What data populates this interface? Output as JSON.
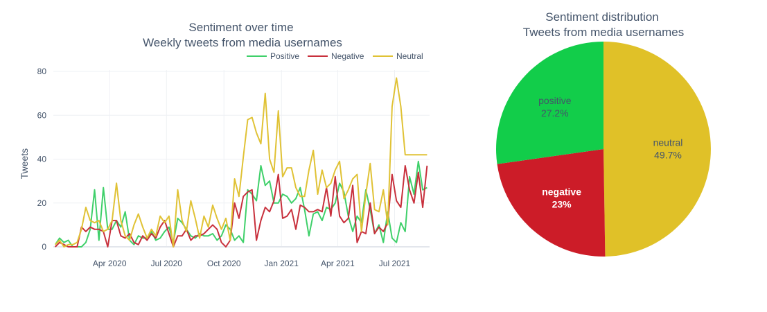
{
  "chart_data": [
    {
      "type": "line",
      "title": "Sentiment over time",
      "subtitle": "Weekly tweets from media usernames",
      "ylabel": "Tweets",
      "xlabel": "",
      "x_ticks": [
        {
          "date": "2020-04-01",
          "label": "Apr 2020"
        },
        {
          "date": "2020-07-01",
          "label": "Jul 2020"
        },
        {
          "date": "2020-10-01",
          "label": "Oct 2020"
        },
        {
          "date": "2021-01-01",
          "label": "Jan 2021"
        },
        {
          "date": "2021-04-01",
          "label": "Apr 2021"
        },
        {
          "date": "2021-07-01",
          "label": "Jul 2021"
        }
      ],
      "y_ticks": [
        0,
        20,
        40,
        60,
        80
      ],
      "xlim": [
        "2020-01-02",
        "2021-08-26"
      ],
      "ylim": [
        0,
        80
      ],
      "grid": true,
      "legend_position": "top-right",
      "x": [
        "2020-01-05",
        "2020-01-12",
        "2020-01-19",
        "2020-01-26",
        "2020-02-02",
        "2020-02-09",
        "2020-02-16",
        "2020-02-23",
        "2020-03-01",
        "2020-03-08",
        "2020-03-15",
        "2020-03-22",
        "2020-03-29",
        "2020-04-05",
        "2020-04-12",
        "2020-04-19",
        "2020-04-26",
        "2020-05-03",
        "2020-05-10",
        "2020-05-17",
        "2020-05-24",
        "2020-05-31",
        "2020-06-07",
        "2020-06-14",
        "2020-06-21",
        "2020-06-28",
        "2020-07-05",
        "2020-07-12",
        "2020-07-19",
        "2020-07-26",
        "2020-08-02",
        "2020-08-09",
        "2020-08-16",
        "2020-08-23",
        "2020-08-30",
        "2020-09-06",
        "2020-09-13",
        "2020-09-20",
        "2020-09-27",
        "2020-10-04",
        "2020-10-11",
        "2020-10-18",
        "2020-10-25",
        "2020-11-01",
        "2020-11-08",
        "2020-11-15",
        "2020-11-22",
        "2020-11-29",
        "2020-12-06",
        "2020-12-13",
        "2020-12-20",
        "2020-12-27",
        "2021-01-03",
        "2021-01-10",
        "2021-01-17",
        "2021-01-24",
        "2021-01-31",
        "2021-02-07",
        "2021-02-14",
        "2021-02-21",
        "2021-02-28",
        "2021-03-07",
        "2021-03-14",
        "2021-03-21",
        "2021-03-28",
        "2021-04-04",
        "2021-04-11",
        "2021-04-18",
        "2021-04-25",
        "2021-05-02",
        "2021-05-09",
        "2021-05-16",
        "2021-05-23",
        "2021-05-30",
        "2021-06-06",
        "2021-06-13",
        "2021-06-20",
        "2021-06-27",
        "2021-07-04",
        "2021-07-11",
        "2021-07-18",
        "2021-07-25",
        "2021-08-01",
        "2021-08-08",
        "2021-08-15",
        "2021-08-22"
      ],
      "series": [
        {
          "name": "Positive",
          "color": "#3fd06a",
          "values": [
            1,
            4,
            2,
            3,
            0,
            0,
            0,
            2,
            8,
            26,
            3,
            27,
            8,
            8,
            12,
            9,
            16,
            3,
            1,
            5,
            4,
            4,
            7,
            3,
            4,
            7,
            9,
            2,
            13,
            11,
            8,
            5,
            4,
            6,
            5,
            5,
            6,
            3,
            5,
            10,
            8,
            3,
            5,
            2,
            26,
            24,
            21,
            37,
            28,
            30,
            20,
            20,
            24,
            23,
            20,
            22,
            27,
            17,
            5,
            15,
            16,
            12,
            18,
            17,
            20,
            29,
            25,
            14,
            7,
            14,
            11,
            26,
            17,
            6,
            10,
            2,
            16,
            4,
            2,
            11,
            7,
            32,
            24,
            39,
            26,
            27
          ]
        },
        {
          "name": "Negative",
          "color": "#c8303c",
          "values": [
            0,
            2,
            1,
            0,
            0,
            0,
            9,
            7,
            9,
            8,
            8,
            7,
            0,
            12,
            12,
            5,
            4,
            6,
            2,
            1,
            5,
            3,
            6,
            4,
            9,
            12,
            6,
            0,
            5,
            5,
            8,
            3,
            5,
            5,
            6,
            8,
            10,
            8,
            2,
            0,
            3,
            20,
            13,
            23,
            25,
            26,
            3,
            12,
            18,
            16,
            21,
            33,
            13,
            14,
            17,
            8,
            19,
            18,
            16,
            16,
            17,
            16,
            27,
            14,
            32,
            14,
            11,
            13,
            28,
            2,
            7,
            6,
            20,
            6,
            9,
            7,
            11,
            33,
            21,
            18,
            37,
            26,
            20,
            34,
            18,
            37
          ]
        },
        {
          "name": "Neutral",
          "color": "#e0c235",
          "values": [
            1,
            3,
            0,
            1,
            1,
            2,
            8,
            18,
            12,
            11,
            12,
            7,
            8,
            12,
            29,
            12,
            5,
            3,
            10,
            15,
            9,
            4,
            8,
            5,
            14,
            11,
            14,
            0,
            26,
            12,
            7,
            21,
            13,
            4,
            14,
            9,
            19,
            13,
            8,
            13,
            3,
            31,
            23,
            41,
            58,
            59,
            52,
            47,
            70,
            40,
            34,
            62,
            32,
            36,
            36,
            27,
            23,
            23,
            35,
            44,
            24,
            35,
            27,
            29,
            35,
            39,
            22,
            26,
            31,
            33,
            7,
            24,
            38,
            17,
            16,
            26,
            10,
            64,
            77,
            64,
            42,
            42,
            42,
            42,
            42,
            42
          ]
        }
      ]
    },
    {
      "type": "pie",
      "title": "Sentiment distribution",
      "subtitle": "Tweets from media usernames",
      "slices": [
        {
          "label": "neutral",
          "value": 49.7,
          "percent_label": "49.7%",
          "color": "#e0c128",
          "text_color": "#44546a"
        },
        {
          "label": "negative",
          "value": 23.0,
          "percent_label": "23%",
          "color": "#cc1c28",
          "text_color": "#ffffff"
        },
        {
          "label": "positive",
          "value": 27.2,
          "percent_label": "27.2%",
          "color": "#12cd4a",
          "text_color": "#44546a"
        }
      ]
    }
  ]
}
